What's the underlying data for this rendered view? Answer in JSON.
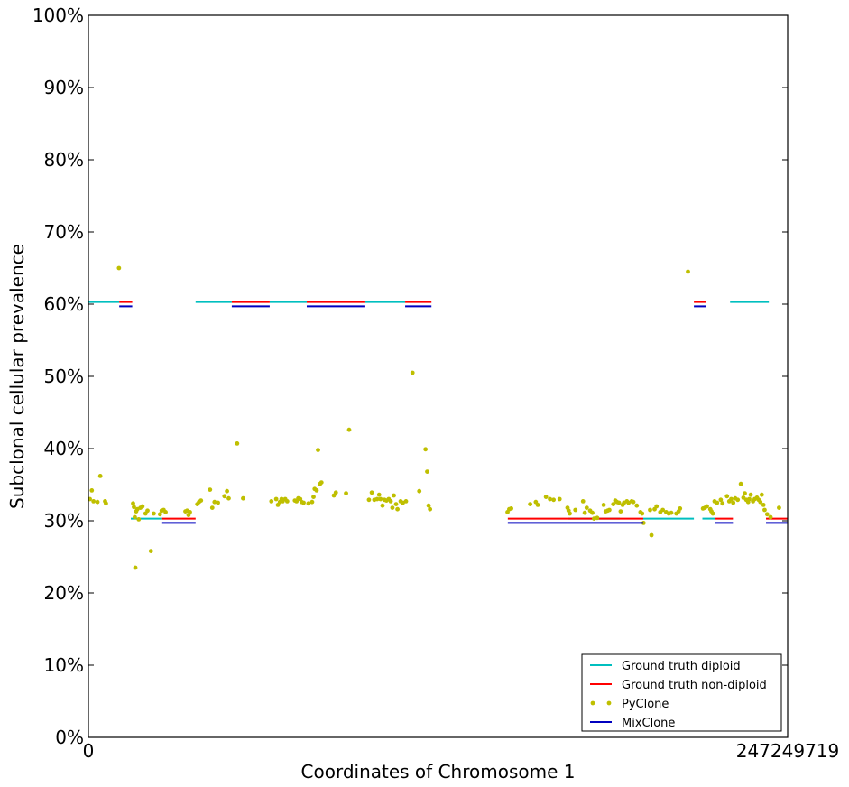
{
  "chart_data": {
    "type": "scatter",
    "xlabel": "Coordinates of Chromosome 1",
    "ylabel": "Subclonal cellular prevalence",
    "xlim": [
      0,
      247249719
    ],
    "ylim": [
      0,
      1
    ],
    "x_tick_labels": [
      "0",
      "247249719"
    ],
    "y_ticks": [
      0,
      0.1,
      0.2,
      0.3,
      0.4,
      0.5,
      0.6,
      0.7,
      0.8,
      0.9,
      1.0
    ],
    "y_tick_labels": [
      "0%",
      "10%",
      "20%",
      "30%",
      "40%",
      "50%",
      "60%",
      "70%",
      "80%",
      "90%",
      "100%"
    ],
    "grid": false,
    "legend_position": "bottom-right",
    "legend": [
      {
        "label": "Ground truth diploid",
        "color": "#00bfbf",
        "marker": "line"
      },
      {
        "label": "Ground truth non-diploid",
        "color": "#ff0000",
        "marker": "line"
      },
      {
        "label": "PyClone",
        "color": "#bfbf00",
        "marker": "dots"
      },
      {
        "label": "MixClone",
        "color": "#0000bf",
        "marker": "line"
      }
    ],
    "segments": [
      {
        "series": "Ground truth diploid",
        "x0": 0,
        "x1": 10900000,
        "y": 0.603
      },
      {
        "series": "Ground truth non-diploid",
        "x0": 10900000,
        "x1": 15500000,
        "y": 0.603
      },
      {
        "series": "MixClone",
        "x0": 10900000,
        "x1": 15500000,
        "y": 0.597
      },
      {
        "series": "Ground truth diploid",
        "x0": 15000000,
        "x1": 26100000,
        "y": 0.303
      },
      {
        "series": "Ground truth non-diploid",
        "x0": 26100000,
        "x1": 37900000,
        "y": 0.303
      },
      {
        "series": "MixClone",
        "x0": 26100000,
        "x1": 37900000,
        "y": 0.297
      },
      {
        "series": "Ground truth diploid",
        "x0": 37900000,
        "x1": 50700000,
        "y": 0.603
      },
      {
        "series": "Ground truth non-diploid",
        "x0": 50700000,
        "x1": 64100000,
        "y": 0.603
      },
      {
        "series": "MixClone",
        "x0": 50700000,
        "x1": 64100000,
        "y": 0.597
      },
      {
        "series": "Ground truth diploid",
        "x0": 64100000,
        "x1": 77200000,
        "y": 0.603
      },
      {
        "series": "Ground truth non-diploid",
        "x0": 77200000,
        "x1": 97600000,
        "y": 0.603
      },
      {
        "series": "MixClone",
        "x0": 77200000,
        "x1": 97600000,
        "y": 0.597
      },
      {
        "series": "Ground truth diploid",
        "x0": 97600000,
        "x1": 112000000,
        "y": 0.603
      },
      {
        "series": "Ground truth non-diploid",
        "x0": 112000000,
        "x1": 121300000,
        "y": 0.603
      },
      {
        "series": "MixClone",
        "x0": 112000000,
        "x1": 121300000,
        "y": 0.597
      },
      {
        "series": "Ground truth non-diploid",
        "x0": 148300000,
        "x1": 169400000,
        "y": 0.303
      },
      {
        "series": "MixClone",
        "x0": 148300000,
        "x1": 169400000,
        "y": 0.297
      },
      {
        "series": "Ground truth diploid",
        "x0": 169400000,
        "x1": 187900000,
        "y": 0.303
      },
      {
        "series": "Ground truth non-diploid",
        "x0": 169400000,
        "x1": 196200000,
        "y": 0.303
      },
      {
        "series": "MixClone",
        "x0": 169400000,
        "x1": 196200000,
        "y": 0.297
      },
      {
        "series": "Ground truth diploid",
        "x0": 196200000,
        "x1": 214100000,
        "y": 0.303
      },
      {
        "series": "Ground truth non-diploid",
        "x0": 214100000,
        "x1": 218500000,
        "y": 0.603
      },
      {
        "series": "MixClone",
        "x0": 214100000,
        "x1": 218500000,
        "y": 0.597
      },
      {
        "series": "Ground truth diploid",
        "x0": 217100000,
        "x1": 221600000,
        "y": 0.303
      },
      {
        "series": "Ground truth non-diploid",
        "x0": 221600000,
        "x1": 227900000,
        "y": 0.303
      },
      {
        "series": "MixClone",
        "x0": 221600000,
        "x1": 227900000,
        "y": 0.297
      },
      {
        "series": "Ground truth diploid",
        "x0": 226900000,
        "x1": 240600000,
        "y": 0.603
      },
      {
        "series": "Ground truth non-diploid",
        "x0": 239600000,
        "x1": 247249719,
        "y": 0.303
      },
      {
        "series": "MixClone",
        "x0": 239600000,
        "x1": 247249719,
        "y": 0.297
      }
    ],
    "series": [
      {
        "name": "PyClone",
        "points": [
          [
            500000,
            0.33
          ],
          [
            1200000,
            0.342
          ],
          [
            1800000,
            0.327
          ],
          [
            3200000,
            0.326
          ],
          [
            4200000,
            0.362
          ],
          [
            5900000,
            0.327
          ],
          [
            6200000,
            0.324
          ],
          [
            10800000,
            0.65
          ],
          [
            15800000,
            0.324
          ],
          [
            16100000,
            0.319
          ],
          [
            16400000,
            0.305
          ],
          [
            16600000,
            0.235
          ],
          [
            16900000,
            0.313
          ],
          [
            17300000,
            0.316
          ],
          [
            17800000,
            0.302
          ],
          [
            18400000,
            0.318
          ],
          [
            19100000,
            0.32
          ],
          [
            20200000,
            0.31
          ],
          [
            20900000,
            0.314
          ],
          [
            22100000,
            0.258
          ],
          [
            23100000,
            0.31
          ],
          [
            25300000,
            0.309
          ],
          [
            25900000,
            0.314
          ],
          [
            26600000,
            0.315
          ],
          [
            27300000,
            0.312
          ],
          [
            34300000,
            0.313
          ],
          [
            34900000,
            0.314
          ],
          [
            35400000,
            0.308
          ],
          [
            35900000,
            0.312
          ],
          [
            38500000,
            0.323
          ],
          [
            39100000,
            0.326
          ],
          [
            39800000,
            0.328
          ],
          [
            43000000,
            0.343
          ],
          [
            43800000,
            0.318
          ],
          [
            44600000,
            0.326
          ],
          [
            45800000,
            0.325
          ],
          [
            48100000,
            0.334
          ],
          [
            49000000,
            0.341
          ],
          [
            49600000,
            0.331
          ],
          [
            52600000,
            0.407
          ],
          [
            54700000,
            0.331
          ],
          [
            64700000,
            0.327
          ],
          [
            66400000,
            0.33
          ],
          [
            67000000,
            0.322
          ],
          [
            67700000,
            0.326
          ],
          [
            68300000,
            0.33
          ],
          [
            68700000,
            0.327
          ],
          [
            69600000,
            0.33
          ],
          [
            70300000,
            0.327
          ],
          [
            73000000,
            0.328
          ],
          [
            73600000,
            0.327
          ],
          [
            74200000,
            0.331
          ],
          [
            74900000,
            0.33
          ],
          [
            75400000,
            0.326
          ],
          [
            76100000,
            0.325
          ],
          [
            77800000,
            0.324
          ],
          [
            79100000,
            0.326
          ],
          [
            79600000,
            0.333
          ],
          [
            80000000,
            0.344
          ],
          [
            80700000,
            0.342
          ],
          [
            81200000,
            0.398
          ],
          [
            81900000,
            0.351
          ],
          [
            82400000,
            0.353
          ],
          [
            86800000,
            0.335
          ],
          [
            87500000,
            0.339
          ],
          [
            91100000,
            0.338
          ],
          [
            92200000,
            0.426
          ],
          [
            99200000,
            0.329
          ],
          [
            100200000,
            0.339
          ],
          [
            101100000,
            0.329
          ],
          [
            102100000,
            0.33
          ],
          [
            102800000,
            0.336
          ],
          [
            103300000,
            0.33
          ],
          [
            104000000,
            0.321
          ],
          [
            104700000,
            0.329
          ],
          [
            105400000,
            0.328
          ],
          [
            106200000,
            0.33
          ],
          [
            106900000,
            0.327
          ],
          [
            107500000,
            0.318
          ],
          [
            108000000,
            0.335
          ],
          [
            108800000,
            0.323
          ],
          [
            109300000,
            0.316
          ],
          [
            110400000,
            0.327
          ],
          [
            111200000,
            0.325
          ],
          [
            112300000,
            0.327
          ],
          [
            114600000,
            0.505
          ],
          [
            117000000,
            0.341
          ],
          [
            119200000,
            0.399
          ],
          [
            119800000,
            0.368
          ],
          [
            120300000,
            0.321
          ],
          [
            120800000,
            0.316
          ],
          [
            148200000,
            0.312
          ],
          [
            148800000,
            0.316
          ],
          [
            149500000,
            0.317
          ],
          [
            156200000,
            0.323
          ],
          [
            158200000,
            0.326
          ],
          [
            158900000,
            0.322
          ],
          [
            161800000,
            0.333
          ],
          [
            163200000,
            0.33
          ],
          [
            164500000,
            0.329
          ],
          [
            166600000,
            0.33
          ],
          [
            169400000,
            0.318
          ],
          [
            169800000,
            0.314
          ],
          [
            170200000,
            0.31
          ],
          [
            172200000,
            0.315
          ],
          [
            174900000,
            0.327
          ],
          [
            175500000,
            0.311
          ],
          [
            176200000,
            0.318
          ],
          [
            177400000,
            0.314
          ],
          [
            178200000,
            0.311
          ],
          [
            178800000,
            0.303
          ],
          [
            179900000,
            0.304
          ],
          [
            182200000,
            0.322
          ],
          [
            182900000,
            0.313
          ],
          [
            183600000,
            0.314
          ],
          [
            184200000,
            0.315
          ],
          [
            185600000,
            0.323
          ],
          [
            186300000,
            0.328
          ],
          [
            186900000,
            0.326
          ],
          [
            187600000,
            0.325
          ],
          [
            188200000,
            0.313
          ],
          [
            188900000,
            0.322
          ],
          [
            189400000,
            0.325
          ],
          [
            190400000,
            0.327
          ],
          [
            191000000,
            0.325
          ],
          [
            192100000,
            0.327
          ],
          [
            192700000,
            0.326
          ],
          [
            193900000,
            0.321
          ],
          [
            195200000,
            0.312
          ],
          [
            195800000,
            0.31
          ],
          [
            196300000,
            0.297
          ],
          [
            199100000,
            0.28
          ],
          [
            198600000,
            0.315
          ],
          [
            200200000,
            0.316
          ],
          [
            200900000,
            0.32
          ],
          [
            202200000,
            0.312
          ],
          [
            203100000,
            0.315
          ],
          [
            204300000,
            0.312
          ],
          [
            205200000,
            0.31
          ],
          [
            206100000,
            0.311
          ],
          [
            207900000,
            0.31
          ],
          [
            208700000,
            0.313
          ],
          [
            209200000,
            0.317
          ],
          [
            212000000,
            0.645
          ],
          [
            217300000,
            0.317
          ],
          [
            218000000,
            0.318
          ],
          [
            218700000,
            0.32
          ],
          [
            219900000,
            0.316
          ],
          [
            220300000,
            0.313
          ],
          [
            220800000,
            0.31
          ],
          [
            221400000,
            0.327
          ],
          [
            222300000,
            0.325
          ],
          [
            223600000,
            0.329
          ],
          [
            224200000,
            0.324
          ],
          [
            225800000,
            0.334
          ],
          [
            226600000,
            0.327
          ],
          [
            227300000,
            0.33
          ],
          [
            228000000,
            0.325
          ],
          [
            228700000,
            0.331
          ],
          [
            229600000,
            0.329
          ],
          [
            230700000,
            0.351
          ],
          [
            231600000,
            0.332
          ],
          [
            232100000,
            0.338
          ],
          [
            232600000,
            0.329
          ],
          [
            233300000,
            0.326
          ],
          [
            233700000,
            0.33
          ],
          [
            234200000,
            0.336
          ],
          [
            235000000,
            0.327
          ],
          [
            235600000,
            0.33
          ],
          [
            236400000,
            0.332
          ],
          [
            237000000,
            0.329
          ],
          [
            237600000,
            0.326
          ],
          [
            238100000,
            0.336
          ],
          [
            238700000,
            0.322
          ],
          [
            239100000,
            0.315
          ],
          [
            240000000,
            0.309
          ],
          [
            241200000,
            0.305
          ],
          [
            244200000,
            0.318
          ]
        ]
      }
    ]
  }
}
